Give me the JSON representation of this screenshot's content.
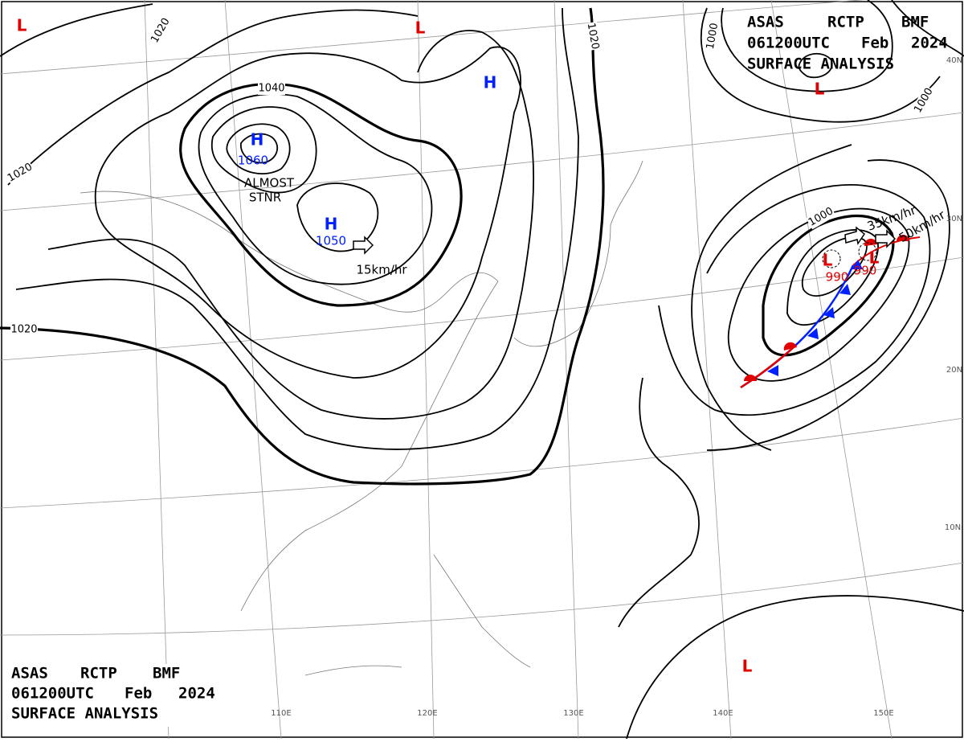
{
  "header": {
    "agency": "ASAS",
    "station": "RCTP",
    "code": "BMF",
    "time": "061200UTC",
    "month": "Feb",
    "year": "2024",
    "title": "SURFACE ANALYSIS"
  },
  "footer": {
    "agency": "ASAS",
    "station": "RCTP",
    "code": "BMF",
    "time": "061200UTC",
    "month": "Feb",
    "year": "2024",
    "title": "SURFACE ANALYSIS"
  },
  "centers": [
    {
      "label": "H",
      "pressure": "1060"
    },
    {
      "label": "H",
      "pressure": "1050"
    },
    {
      "label": "H"
    },
    {
      "label": "L",
      "pressure": "990"
    },
    {
      "label": "L",
      "pressure": "990"
    },
    {
      "label": "L"
    },
    {
      "label": "L"
    },
    {
      "label": "L"
    },
    {
      "label": "L"
    }
  ],
  "isobar_labels": [
    "1020",
    "1020",
    "1040",
    "1020",
    "1020",
    "1000",
    "1000",
    "1000"
  ],
  "annotations": [
    "ALMOST",
    "STNR",
    "15km/hr",
    "35km/hr",
    "50km/hr"
  ],
  "lat_labels": [
    "40N",
    "30N",
    "20N",
    "10N"
  ],
  "lon_labels": [
    "110E",
    "120E",
    "130E",
    "140E",
    "150E"
  ]
}
